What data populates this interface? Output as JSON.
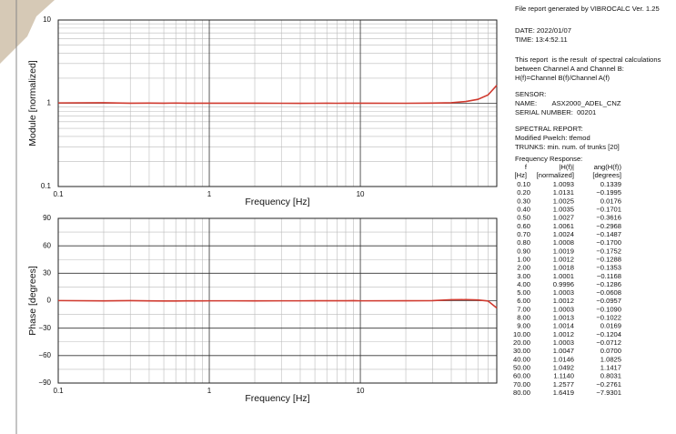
{
  "chart_data": [
    {
      "type": "line",
      "x_label": "Frequency [Hz]",
      "y_label": "Module [normalized]",
      "xscale": "log",
      "yscale": "log",
      "xlim": [
        0.1,
        80
      ],
      "ylim": [
        0.1,
        10
      ],
      "xticks": [
        0.1,
        1,
        10
      ],
      "yticks": [
        0.1,
        1,
        10
      ],
      "grid": true,
      "x": [
        0.1,
        0.2,
        0.3,
        0.4,
        0.5,
        0.6,
        0.7,
        0.8,
        0.9,
        1,
        2,
        3,
        4,
        5,
        6,
        7,
        8,
        9,
        10,
        20,
        30,
        40,
        50,
        60,
        70,
        80
      ],
      "series": [
        {
          "color": "#d03a2f",
          "values": [
            1.0093,
            1.0131,
            1.0025,
            1.0035,
            1.0027,
            1.0061,
            1.0024,
            1.0008,
            1.0019,
            1.0012,
            1.0018,
            1.0001,
            0.9996,
            1.0003,
            1.0012,
            1.0003,
            1.0013,
            1.0014,
            1.0012,
            1.0003,
            1.0047,
            1.0146,
            1.0492,
            1.114,
            1.2577,
            1.6419
          ]
        }
      ]
    },
    {
      "type": "line",
      "x_label": "Frequency [Hz]",
      "y_label": "Phase [degrees]",
      "xscale": "log",
      "yscale": "linear",
      "xlim": [
        0.1,
        80
      ],
      "ylim": [
        -90,
        90
      ],
      "xticks": [
        0.1,
        1,
        10
      ],
      "yticks": [
        {
          "value": -90,
          "label": "−90"
        },
        {
          "value": -60,
          "label": "−60"
        },
        {
          "value": -30,
          "label": "−30"
        },
        0,
        30,
        60,
        90
      ],
      "grid": true,
      "x": [
        0.1,
        0.2,
        0.3,
        0.4,
        0.5,
        0.6,
        0.7,
        0.8,
        0.9,
        1,
        2,
        3,
        4,
        5,
        6,
        7,
        8,
        9,
        10,
        20,
        30,
        40,
        50,
        60,
        70,
        80
      ],
      "series": [
        {
          "color": "#d03a2f",
          "values": [
            0.1339,
            -0.1995,
            0.0176,
            -0.1701,
            -0.3616,
            -0.2968,
            -0.1487,
            -0.17,
            -0.1752,
            -0.1288,
            -0.1353,
            -0.1168,
            -0.1286,
            -0.0608,
            -0.0957,
            -0.109,
            -0.1022,
            0.0169,
            -0.1204,
            -0.0712,
            0.07,
            1.0825,
            1.1417,
            0.8031,
            -0.2761,
            -7.9301
          ]
        }
      ]
    }
  ],
  "report": {
    "lines": [
      "File report generated by VIBROCALC Ver. 1.25",
      "DATE: 2022/01/07",
      "TIME: 13:4:52.11",
      "This report  is the result  of spectral calculations",
      "between Channel A and Channel B:",
      "H(f)=Channel B(f)/Channel A(f)",
      "SENSOR:",
      "NAME:        ASX2000_ADEL_CNZ",
      "SERIAL NUMBER:  00201",
      "SPECTRAL REPORT:",
      "Modified Pwelch: tfemod",
      "TRUNKS: min. num. of trunks [20]",
      "Frequency Response:"
    ],
    "table": {
      "header": [
        [
          "f",
          "|H(f)|",
          "ang(H(f))"
        ],
        [
          "[Hz]",
          "[normalized]",
          "[degrees]"
        ]
      ],
      "rows": [
        [
          "0.10",
          "1.0093",
          "0.1339"
        ],
        [
          "0.20",
          "1.0131",
          "−0.1995"
        ],
        [
          "0.30",
          "1.0025",
          "0.0176"
        ],
        [
          "0.40",
          "1.0035",
          "−0.1701"
        ],
        [
          "0.50",
          "1.0027",
          "−0.3616"
        ],
        [
          "0.60",
          "1.0061",
          "−0.2968"
        ],
        [
          "0.70",
          "1.0024",
          "−0.1487"
        ],
        [
          "0.80",
          "1.0008",
          "−0.1700"
        ],
        [
          "0.90",
          "1.0019",
          "−0.1752"
        ],
        [
          "1.00",
          "1.0012",
          "−0.1288"
        ],
        [
          "2.00",
          "1.0018",
          "−0.1353"
        ],
        [
          "3.00",
          "1.0001",
          "−0.1168"
        ],
        [
          "4.00",
          "0.9996",
          "−0.1286"
        ],
        [
          "5.00",
          "1.0003",
          "−0.0608"
        ],
        [
          "6.00",
          "1.0012",
          "−0.0957"
        ],
        [
          "7.00",
          "1.0003",
          "−0.1090"
        ],
        [
          "8.00",
          "1.0013",
          "−0.1022"
        ],
        [
          "9.00",
          "1.0014",
          "0.0169"
        ],
        [
          "10.00",
          "1.0012",
          "−0.1204"
        ],
        [
          "20.00",
          "1.0003",
          "−0.0712"
        ],
        [
          "30.00",
          "1.0047",
          "0.0700"
        ],
        [
          "40.00",
          "1.0146",
          "1.0825"
        ],
        [
          "50.00",
          "1.0492",
          "1.1417"
        ],
        [
          "60.00",
          "1.1140",
          "0.8031"
        ],
        [
          "70.00",
          "1.2577",
          "−0.2761"
        ],
        [
          "80.00",
          "1.6419",
          "−7.9301"
        ]
      ]
    }
  }
}
